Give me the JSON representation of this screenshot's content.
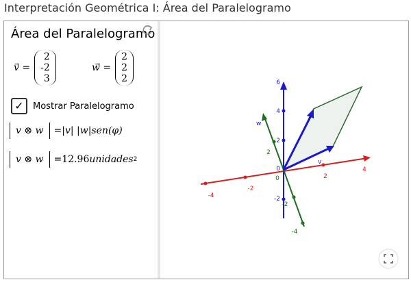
{
  "header": {
    "title": "Interpretación Geométrica I: Área del Paralelogramo"
  },
  "panel": {
    "heading": "Área del Paralelogramo",
    "vector_v": {
      "name": "v",
      "components": [
        2,
        -2,
        3
      ]
    },
    "vector_w": {
      "name": "w",
      "components": [
        2,
        2,
        2
      ]
    },
    "checkbox": {
      "label": "Mostrar Paralelogramo",
      "checked": true
    },
    "formula": {
      "left": "v ⊗ w",
      "equals": "=",
      "right": "|v| |w|sen(φ)"
    },
    "result": {
      "left": "v ⊗ w",
      "equals": "=",
      "value": "12.96",
      "unit": "unidades",
      "exponent": "2"
    }
  },
  "view3d": {
    "z_labels": [
      "6",
      "4",
      "2",
      "0",
      "-2"
    ],
    "x_labels": [
      "-4",
      "-2",
      "2",
      "4"
    ],
    "y_labels": [
      "2",
      "0",
      "-2",
      "-4"
    ],
    "vector_labels": [
      "v",
      "w"
    ]
  }
}
